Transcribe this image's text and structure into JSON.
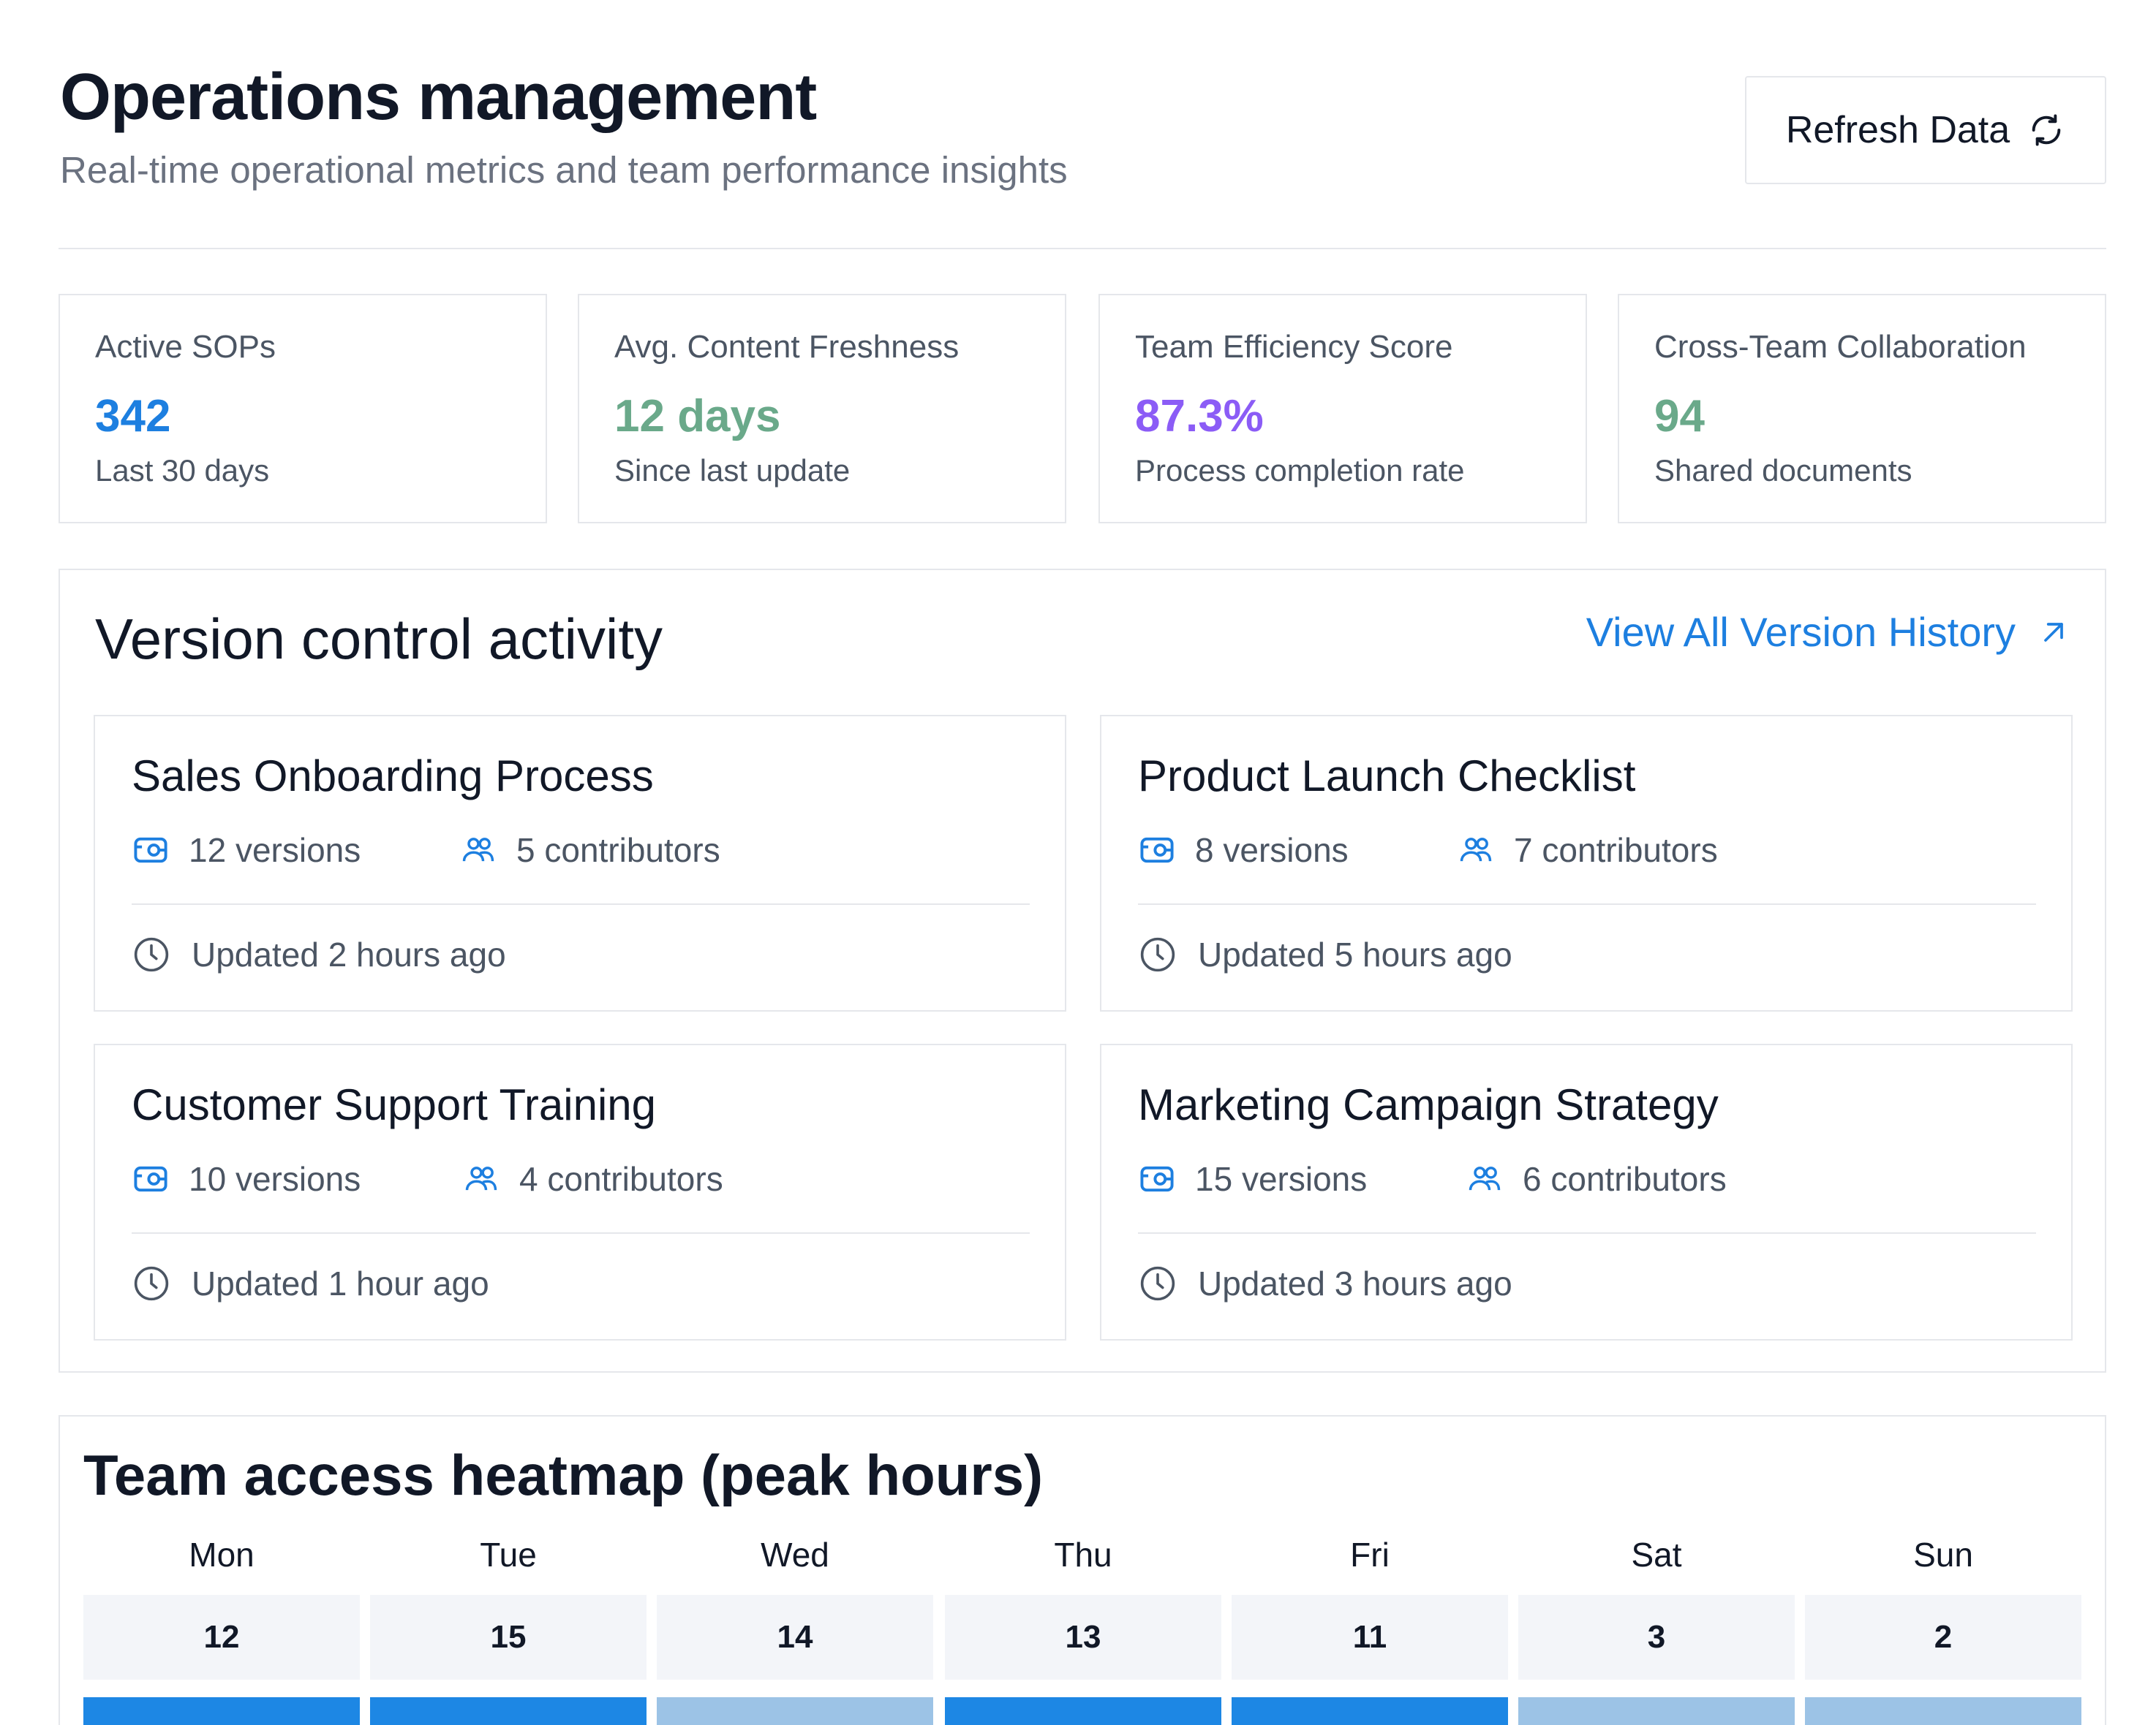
{
  "header": {
    "title": "Operations management",
    "subtitle": "Real-time operational metrics and team performance insights",
    "refresh_label": "Refresh Data"
  },
  "stats": [
    {
      "label": "Active SOPs",
      "value": "342",
      "sub": "Last 30 days",
      "color": "#1d7fe0"
    },
    {
      "label": "Avg. Content Freshness",
      "value": "12 days",
      "sub": "Since last update",
      "color": "#6aa98a"
    },
    {
      "label": "Team Efficiency Score",
      "value": "87.3%",
      "sub": "Process completion rate",
      "color": "#8b5cf6"
    },
    {
      "label": "Cross-Team Collaboration",
      "value": "94",
      "sub": "Shared documents",
      "color": "#6aa98a"
    }
  ],
  "version_control": {
    "title": "Version control activity",
    "link_label": "View All Version History",
    "documents": [
      {
        "name": "Sales Onboarding Process",
        "versions": "12 versions",
        "contributors": "5 contributors",
        "updated": "Updated 2 hours ago"
      },
      {
        "name": "Product Launch Checklist",
        "versions": "8 versions",
        "contributors": "7 contributors",
        "updated": "Updated 5 hours ago"
      },
      {
        "name": "Customer Support Training",
        "versions": "10 versions",
        "contributors": "4 contributors",
        "updated": "Updated 1 hour ago"
      },
      {
        "name": "Marketing Campaign Strategy",
        "versions": "15 versions",
        "contributors": "6 contributors",
        "updated": "Updated 3 hours ago"
      }
    ]
  },
  "heatmap": {
    "title": "Team access heatmap (peak hours)",
    "days": [
      "Mon",
      "Tue",
      "Wed",
      "Thu",
      "Fri",
      "Sat",
      "Sun"
    ],
    "row1": [
      "12",
      "15",
      "14",
      "13",
      "11",
      "3",
      "2"
    ],
    "row2_colors": [
      "#1d87e4",
      "#1d87e4",
      "#9cc3e6",
      "#1d87e4",
      "#1d87e4",
      "#9cc3e6",
      "#9cc3e6"
    ]
  },
  "colors": {
    "accent": "#1d7fe0",
    "border": "#e5e7eb",
    "light_cell": "#f3f5f9"
  }
}
